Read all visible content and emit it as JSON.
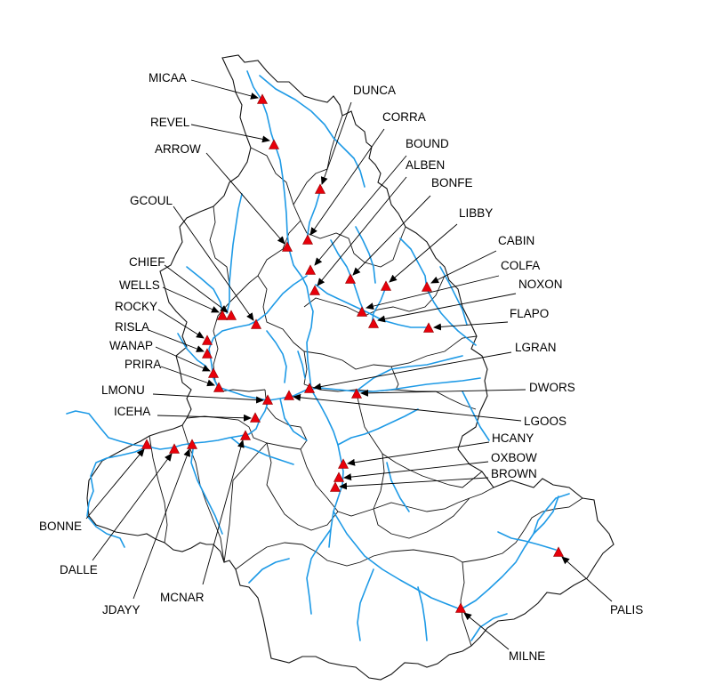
{
  "map": {
    "colors": {
      "river": "#1e9ae6",
      "boundary": "#111111",
      "marker": "#e8000b",
      "leader": "#000000"
    },
    "sites": [
      {
        "name": "MICAA",
        "label": "MICAA",
        "icon": "triangle-marker"
      },
      {
        "name": "REVEL",
        "label": "REVEL",
        "icon": "triangle-marker"
      },
      {
        "name": "ARROW",
        "label": "ARROW",
        "icon": "triangle-marker"
      },
      {
        "name": "DUNCA",
        "label": "DUNCA",
        "icon": "triangle-marker"
      },
      {
        "name": "CORRA",
        "label": "CORRA",
        "icon": "triangle-marker"
      },
      {
        "name": "BOUND",
        "label": "BOUND",
        "icon": "triangle-marker"
      },
      {
        "name": "ALBEN",
        "label": "ALBEN",
        "icon": "triangle-marker"
      },
      {
        "name": "BONFE",
        "label": "BONFE",
        "icon": "triangle-marker"
      },
      {
        "name": "LIBBY",
        "label": "LIBBY",
        "icon": "triangle-marker"
      },
      {
        "name": "CABIN",
        "label": "CABIN",
        "icon": "triangle-marker"
      },
      {
        "name": "COLFA",
        "label": "COLFA",
        "icon": "triangle-marker"
      },
      {
        "name": "NOXON",
        "label": "NOXON",
        "icon": "triangle-marker"
      },
      {
        "name": "FLAPO",
        "label": "FLAPO",
        "icon": "triangle-marker"
      },
      {
        "name": "GCOUL",
        "label": "GCOUL",
        "icon": "triangle-marker"
      },
      {
        "name": "CHIEF",
        "label": "CHIEF",
        "icon": "triangle-marker"
      },
      {
        "name": "WELLS",
        "label": "WELLS",
        "icon": "triangle-marker"
      },
      {
        "name": "ROCKY",
        "label": "ROCKY",
        "icon": "triangle-marker"
      },
      {
        "name": "RISLA",
        "label": "RISLA",
        "icon": "triangle-marker"
      },
      {
        "name": "WANAP",
        "label": "WANAP",
        "icon": "triangle-marker"
      },
      {
        "name": "PRIRA",
        "label": "PRIRA",
        "icon": "triangle-marker"
      },
      {
        "name": "LMONU",
        "label": "LMONU",
        "icon": "triangle-marker"
      },
      {
        "name": "ICEHA",
        "label": "ICEHA",
        "icon": "triangle-marker"
      },
      {
        "name": "LGRAN",
        "label": "LGRAN",
        "icon": "triangle-marker"
      },
      {
        "name": "DWORS",
        "label": "DWORS",
        "icon": "triangle-marker"
      },
      {
        "name": "LGOOS",
        "label": "LGOOS",
        "icon": "triangle-marker"
      },
      {
        "name": "HCANY",
        "label": "HCANY",
        "icon": "triangle-marker"
      },
      {
        "name": "OXBOW",
        "label": "OXBOW",
        "icon": "triangle-marker"
      },
      {
        "name": "BROWN",
        "label": "BROWN",
        "icon": "triangle-marker"
      },
      {
        "name": "BONNE",
        "label": "BONNE",
        "icon": "triangle-marker"
      },
      {
        "name": "DALLE",
        "label": "DALLE",
        "icon": "triangle-marker"
      },
      {
        "name": "JDAYY",
        "label": "JDAYY",
        "icon": "triangle-marker"
      },
      {
        "name": "MCNAR",
        "label": "MCNAR",
        "icon": "triangle-marker"
      },
      {
        "name": "MILNE",
        "label": "MILNE",
        "icon": "triangle-marker"
      },
      {
        "name": "PALIS",
        "label": "PALIS",
        "icon": "triangle-marker"
      }
    ]
  }
}
